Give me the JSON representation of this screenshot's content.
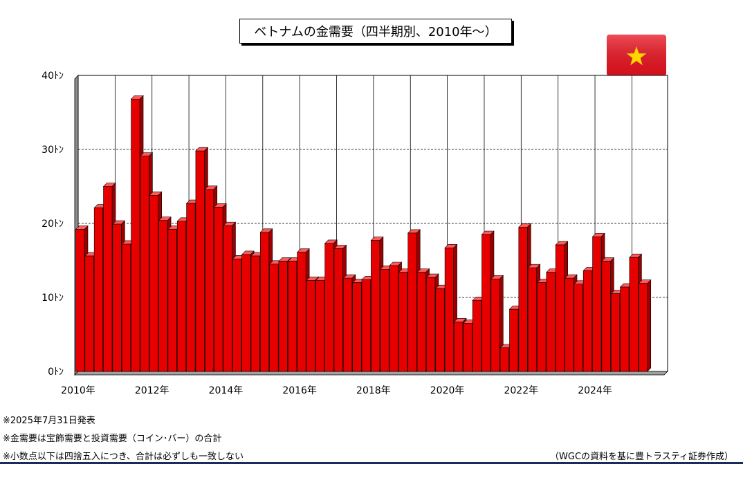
{
  "title": "ベトナムの金需要（四半期別、2010年～）",
  "notes": [
    "※2025年7月31日発表",
    "※金需要は宝飾需要と投資需要（コイン･バー）の合計",
    "※小数点以下は四捨五入につき、合計は必ずしも一致しない"
  ],
  "source": "（WGCの資料を基に豊トラスティ証券作成）",
  "flag_icon": "vietnam-flag-icon",
  "colors": {
    "bar_front": "#e60000",
    "bar_side": "#990000",
    "bar_top": "#ff5a5a",
    "flag_red": "#e8121f",
    "flag_star": "#ffd700"
  },
  "chart_data": {
    "type": "bar",
    "title": "ベトナムの金需要（四半期別、2010年～）",
    "ylim": [
      0,
      40
    ],
    "y_ticks": [
      0,
      10,
      20,
      30,
      40
    ],
    "y_tick_labels": [
      "0ﾄﾝ",
      "10ﾄﾝ",
      "20ﾄﾝ",
      "30ﾄﾝ",
      "40ﾄﾝ"
    ],
    "x_tick_labels": [
      "2010年",
      "2012年",
      "2014年",
      "2016年",
      "2018年",
      "2020年",
      "2022年",
      "2024年"
    ],
    "grid": true,
    "categories": [
      "2010Q1",
      "2010Q2",
      "2010Q3",
      "2010Q4",
      "2011Q1",
      "2011Q2",
      "2011Q3",
      "2011Q4",
      "2012Q1",
      "2012Q2",
      "2012Q3",
      "2012Q4",
      "2013Q1",
      "2013Q2",
      "2013Q3",
      "2013Q4",
      "2014Q1",
      "2014Q2",
      "2014Q3",
      "2014Q4",
      "2015Q1",
      "2015Q2",
      "2015Q3",
      "2015Q4",
      "2016Q1",
      "2016Q2",
      "2016Q3",
      "2016Q4",
      "2017Q1",
      "2017Q2",
      "2017Q3",
      "2017Q4",
      "2018Q1",
      "2018Q2",
      "2018Q3",
      "2018Q4",
      "2019Q1",
      "2019Q2",
      "2019Q3",
      "2019Q4",
      "2020Q1",
      "2020Q2",
      "2020Q3",
      "2020Q4",
      "2021Q1",
      "2021Q2",
      "2021Q3",
      "2021Q4",
      "2022Q1",
      "2022Q2",
      "2022Q3",
      "2022Q4",
      "2023Q1",
      "2023Q2",
      "2023Q3",
      "2023Q4",
      "2024Q1",
      "2024Q2",
      "2024Q3",
      "2024Q4",
      "2025Q1",
      "2025Q2"
    ],
    "values": [
      19.2,
      15.6,
      22.1,
      25.0,
      19.9,
      17.2,
      36.8,
      29.1,
      23.8,
      20.4,
      19.2,
      20.3,
      22.7,
      29.8,
      24.6,
      22.2,
      19.7,
      15.2,
      15.8,
      15.6,
      18.8,
      14.5,
      14.9,
      14.9,
      16.1,
      12.3,
      12.3,
      17.3,
      16.6,
      12.6,
      12.0,
      12.4,
      17.7,
      13.8,
      14.3,
      13.4,
      18.7,
      13.4,
      12.7,
      11.2,
      16.7,
      6.7,
      6.5,
      9.6,
      18.5,
      12.5,
      3.2,
      8.4,
      19.5,
      14.0,
      12.0,
      13.4,
      17.1,
      12.6,
      11.8,
      13.6,
      18.2,
      14.9,
      10.5,
      11.4,
      15.4,
      11.9
    ]
  }
}
